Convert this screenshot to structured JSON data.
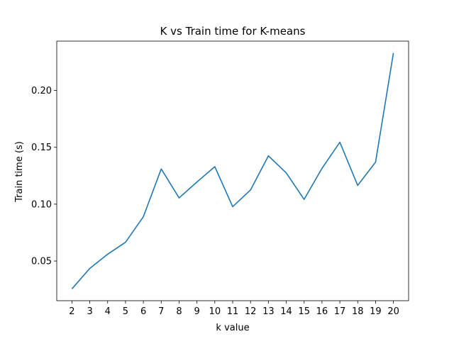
{
  "chart_data": {
    "type": "line",
    "title": "K vs Train time for K-means",
    "xlabel": "k value",
    "ylabel": "Train time (s)",
    "x": [
      2,
      3,
      4,
      5,
      6,
      7,
      8,
      9,
      10,
      11,
      12,
      13,
      14,
      15,
      16,
      17,
      18,
      19,
      20
    ],
    "series": [
      {
        "color": "#1f77b4",
        "values": [
          0.0255,
          0.0435,
          0.056,
          0.0665,
          0.089,
          0.131,
          0.1055,
          0.1195,
          0.133,
          0.0978,
          0.1125,
          0.1425,
          0.1275,
          0.1042,
          0.1315,
          0.1545,
          0.1165,
          0.137,
          0.233
        ]
      }
    ],
    "xlim": [
      1.15,
      20.85
    ],
    "ylim": [
      0.0151,
      0.2434
    ],
    "xticks": [
      2,
      3,
      4,
      5,
      6,
      7,
      8,
      9,
      10,
      11,
      12,
      13,
      14,
      15,
      16,
      17,
      18,
      19,
      20
    ],
    "yticks": [
      0.05,
      0.1,
      0.15,
      0.2
    ],
    "ytick_labels": [
      "0.05",
      "0.10",
      "0.15",
      "0.20"
    ],
    "grid": false,
    "legend": "none"
  }
}
